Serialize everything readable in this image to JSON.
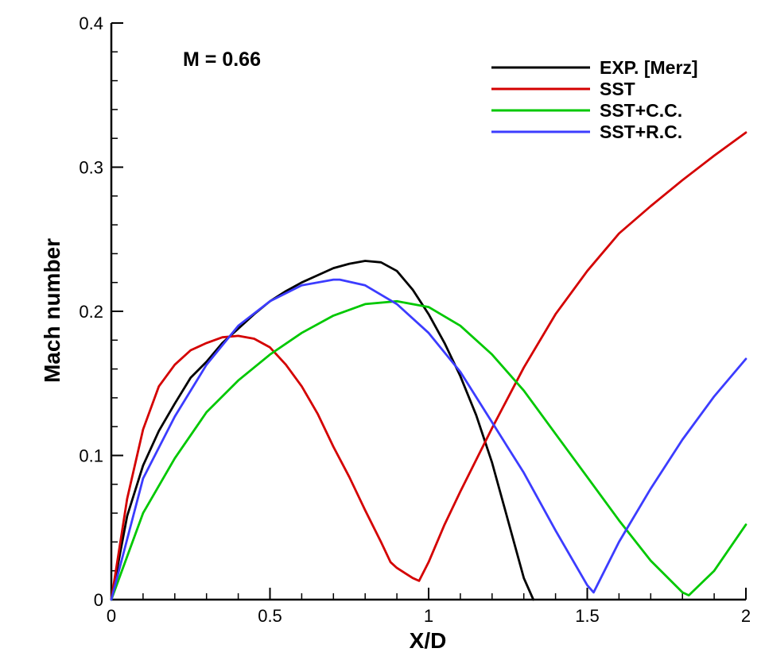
{
  "chart_data": {
    "type": "line",
    "title": "",
    "annotation": "M = 0.66",
    "xlabel": "X/D",
    "ylabel": "Mach number",
    "xlim": [
      0,
      2
    ],
    "ylim": [
      0,
      0.4
    ],
    "x_ticks": [
      0,
      0.5,
      1,
      1.5,
      2
    ],
    "x_tick_labels": [
      "0",
      "0.5",
      "1",
      "1.5",
      "2"
    ],
    "y_ticks": [
      0,
      0.1,
      0.2,
      0.3,
      0.4
    ],
    "y_tick_labels": [
      "0",
      "0.1",
      "0.2",
      "0.3",
      "0.4"
    ],
    "grid": false,
    "legend_position": "top-right",
    "series": [
      {
        "name": "EXP. [Merz]",
        "color": "#000000",
        "x": [
          0,
          0.05,
          0.1,
          0.15,
          0.2,
          0.25,
          0.3,
          0.35,
          0.4,
          0.45,
          0.5,
          0.55,
          0.6,
          0.65,
          0.7,
          0.75,
          0.8,
          0.85,
          0.9,
          0.95,
          1.0,
          1.05,
          1.1,
          1.15,
          1.2,
          1.25,
          1.3,
          1.33
        ],
        "y": [
          0,
          0.058,
          0.093,
          0.117,
          0.136,
          0.154,
          0.165,
          0.178,
          0.188,
          0.198,
          0.207,
          0.214,
          0.22,
          0.225,
          0.23,
          0.233,
          0.235,
          0.234,
          0.228,
          0.215,
          0.198,
          0.178,
          0.155,
          0.128,
          0.095,
          0.055,
          0.015,
          0
        ]
      },
      {
        "name": "SST",
        "color": "#d40000",
        "x": [
          0,
          0.05,
          0.1,
          0.15,
          0.2,
          0.25,
          0.3,
          0.35,
          0.4,
          0.45,
          0.5,
          0.55,
          0.6,
          0.65,
          0.7,
          0.75,
          0.8,
          0.85,
          0.88,
          0.9,
          0.95,
          0.97,
          1.0,
          1.05,
          1.1,
          1.2,
          1.3,
          1.4,
          1.5,
          1.6,
          1.7,
          1.8,
          1.9,
          2.0
        ],
        "y": [
          0,
          0.07,
          0.118,
          0.148,
          0.163,
          0.173,
          0.178,
          0.182,
          0.183,
          0.181,
          0.175,
          0.163,
          0.148,
          0.129,
          0.106,
          0.085,
          0.062,
          0.04,
          0.026,
          0.022,
          0.015,
          0.013,
          0.026,
          0.052,
          0.075,
          0.119,
          0.161,
          0.198,
          0.228,
          0.254,
          0.273,
          0.291,
          0.308,
          0.324
        ]
      },
      {
        "name": "SST+C.C.",
        "color": "#00c800",
        "x": [
          0,
          0.1,
          0.2,
          0.3,
          0.4,
          0.5,
          0.6,
          0.7,
          0.8,
          0.9,
          1.0,
          1.1,
          1.2,
          1.3,
          1.4,
          1.5,
          1.6,
          1.7,
          1.8,
          1.82,
          1.9,
          2.0
        ],
        "y": [
          0,
          0.06,
          0.098,
          0.13,
          0.152,
          0.17,
          0.185,
          0.197,
          0.205,
          0.207,
          0.203,
          0.19,
          0.17,
          0.145,
          0.115,
          0.085,
          0.055,
          0.027,
          0.005,
          0.003,
          0.02,
          0.052
        ]
      },
      {
        "name": "SST+R.C.",
        "color": "#3c3cff",
        "x": [
          0,
          0.1,
          0.2,
          0.3,
          0.4,
          0.5,
          0.6,
          0.7,
          0.72,
          0.8,
          0.9,
          1.0,
          1.1,
          1.2,
          1.3,
          1.4,
          1.5,
          1.52,
          1.6,
          1.7,
          1.8,
          1.9,
          2.0
        ],
        "y": [
          0,
          0.084,
          0.127,
          0.163,
          0.19,
          0.207,
          0.218,
          0.222,
          0.222,
          0.218,
          0.205,
          0.185,
          0.158,
          0.123,
          0.088,
          0.048,
          0.01,
          0.005,
          0.04,
          0.077,
          0.111,
          0.141,
          0.167
        ]
      }
    ]
  }
}
